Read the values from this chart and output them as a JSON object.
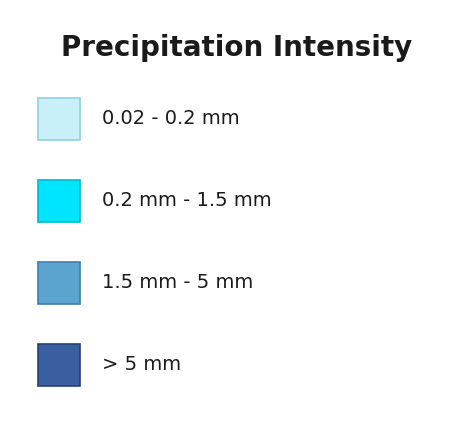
{
  "title": "Precipitation Intensity",
  "title_fontsize": 20,
  "title_fontweight": "bold",
  "background_color": "#ffffff",
  "text_color": "#1a1a1a",
  "label_fontsize": 14,
  "items": [
    {
      "label": "0.02 - 0.2 mm",
      "facecolor": "#c8f0f8",
      "edgecolor": "#90d0e0"
    },
    {
      "label": "0.2 mm - 1.5 mm",
      "facecolor": "#00e5ff",
      "edgecolor": "#00b8d4"
    },
    {
      "label": "1.5 mm - 5 mm",
      "facecolor": "#5ba4cf",
      "edgecolor": "#3a7fb0"
    },
    {
      "label": "> 5 mm",
      "facecolor": "#3a5fa0",
      "edgecolor": "#2a4070"
    }
  ],
  "fig_width": 4.74,
  "fig_height": 4.3,
  "dpi": 100
}
